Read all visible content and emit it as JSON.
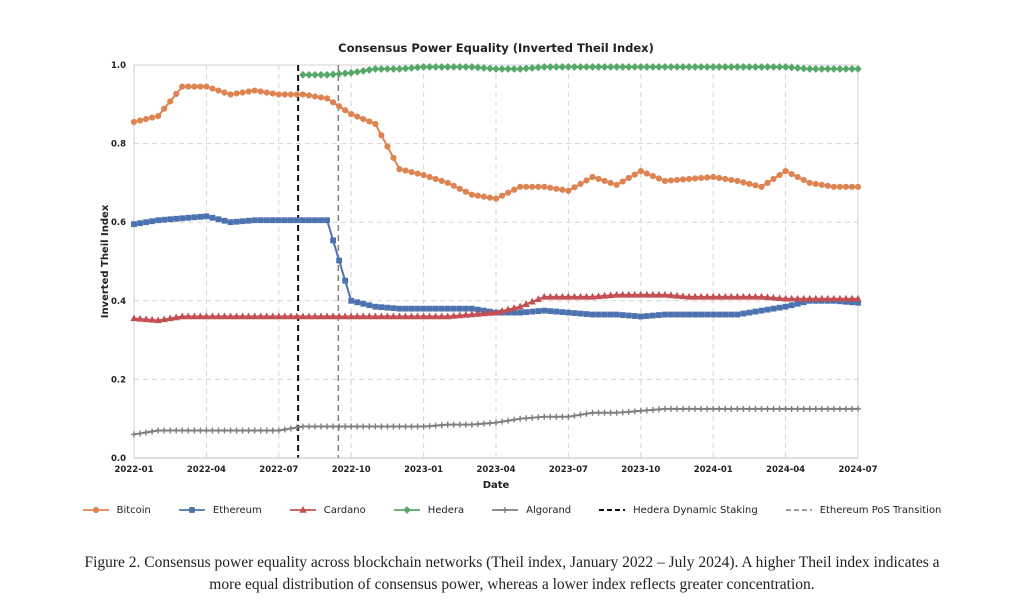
{
  "chart_data": {
    "type": "line",
    "title": "Consensus Power Equality (Inverted Theil Index)",
    "xlabel": "Date",
    "ylabel": "Inverted Theil Index",
    "xlim": [
      "2022-01",
      "2024-07"
    ],
    "ylim": [
      0.0,
      1.0
    ],
    "x_ticks": [
      "2022-01",
      "2022-04",
      "2022-07",
      "2022-10",
      "2023-01",
      "2023-04",
      "2023-07",
      "2023-10",
      "2024-01",
      "2024-04",
      "2024-07"
    ],
    "y_ticks": [
      "0.0",
      "0.2",
      "0.4",
      "0.6",
      "0.8",
      "1.0"
    ],
    "grid": true,
    "legend_placement": "bottom",
    "series": [
      {
        "name": "Bitcoin",
        "color": "#dd8452",
        "marker": "circle",
        "x": [
          "2022-01",
          "2022-02",
          "2022-03",
          "2022-04",
          "2022-05",
          "2022-06",
          "2022-07",
          "2022-08",
          "2022-09",
          "2022-10",
          "2022-11",
          "2022-12",
          "2023-01",
          "2023-02",
          "2023-03",
          "2023-04",
          "2023-05",
          "2023-06",
          "2023-07",
          "2023-08",
          "2023-09",
          "2023-10",
          "2023-11",
          "2023-12",
          "2024-01",
          "2024-02",
          "2024-03",
          "2024-04",
          "2024-05",
          "2024-06",
          "2024-07"
        ],
        "values": [
          0.855,
          0.87,
          0.945,
          0.945,
          0.925,
          0.935,
          0.925,
          0.925,
          0.915,
          0.875,
          0.85,
          0.735,
          0.72,
          0.7,
          0.67,
          0.66,
          0.69,
          0.69,
          0.68,
          0.715,
          0.695,
          0.73,
          0.705,
          0.71,
          0.715,
          0.705,
          0.69,
          0.73,
          0.7,
          0.69,
          0.69
        ]
      },
      {
        "name": "Ethereum",
        "color": "#4c72b0",
        "marker": "square",
        "x": [
          "2022-01",
          "2022-02",
          "2022-03",
          "2022-04",
          "2022-05",
          "2022-06",
          "2022-07",
          "2022-08",
          "2022-09",
          "2022-10",
          "2022-11",
          "2022-12",
          "2023-01",
          "2023-02",
          "2023-03",
          "2023-04",
          "2023-05",
          "2023-06",
          "2023-07",
          "2023-08",
          "2023-09",
          "2023-10",
          "2023-11",
          "2023-12",
          "2024-01",
          "2024-02",
          "2024-03",
          "2024-04",
          "2024-05",
          "2024-06",
          "2024-07"
        ],
        "values": [
          0.595,
          0.605,
          0.61,
          0.615,
          0.6,
          0.605,
          0.605,
          0.605,
          0.605,
          0.4,
          0.385,
          0.38,
          0.38,
          0.38,
          0.38,
          0.37,
          0.37,
          0.375,
          0.37,
          0.365,
          0.365,
          0.36,
          0.365,
          0.365,
          0.365,
          0.365,
          0.375,
          0.385,
          0.4,
          0.4,
          0.395
        ]
      },
      {
        "name": "Cardano",
        "color": "#c44e52",
        "marker": "triangle",
        "x": [
          "2022-01",
          "2022-02",
          "2022-03",
          "2022-04",
          "2022-05",
          "2022-06",
          "2022-07",
          "2022-08",
          "2022-09",
          "2022-10",
          "2022-11",
          "2022-12",
          "2023-01",
          "2023-02",
          "2023-03",
          "2023-04",
          "2023-05",
          "2023-06",
          "2023-07",
          "2023-08",
          "2023-09",
          "2023-10",
          "2023-11",
          "2023-12",
          "2024-01",
          "2024-02",
          "2024-03",
          "2024-04",
          "2024-05",
          "2024-06",
          "2024-07"
        ],
        "values": [
          0.355,
          0.35,
          0.36,
          0.36,
          0.36,
          0.36,
          0.36,
          0.36,
          0.36,
          0.36,
          0.36,
          0.36,
          0.36,
          0.36,
          0.365,
          0.37,
          0.385,
          0.41,
          0.41,
          0.41,
          0.415,
          0.415,
          0.415,
          0.41,
          0.41,
          0.41,
          0.41,
          0.405,
          0.405,
          0.405,
          0.405
        ]
      },
      {
        "name": "Hedera",
        "color": "#55a868",
        "marker": "diamond",
        "x": [
          "2022-08",
          "2022-09",
          "2022-10",
          "2022-11",
          "2022-12",
          "2023-01",
          "2023-02",
          "2023-03",
          "2023-04",
          "2023-05",
          "2023-06",
          "2023-07",
          "2023-08",
          "2023-09",
          "2023-10",
          "2023-11",
          "2023-12",
          "2024-01",
          "2024-02",
          "2024-03",
          "2024-04",
          "2024-05",
          "2024-06",
          "2024-07"
        ],
        "values": [
          0.975,
          0.975,
          0.98,
          0.99,
          0.99,
          0.995,
          0.995,
          0.995,
          0.99,
          0.99,
          0.995,
          0.995,
          0.995,
          0.995,
          0.995,
          0.995,
          0.995,
          0.995,
          0.995,
          0.995,
          0.995,
          0.99,
          0.99,
          0.99
        ]
      },
      {
        "name": "Algorand",
        "color": "#7f7f7f",
        "marker": "plus",
        "x": [
          "2022-01",
          "2022-02",
          "2022-03",
          "2022-04",
          "2022-05",
          "2022-06",
          "2022-07",
          "2022-08",
          "2022-09",
          "2022-10",
          "2022-11",
          "2022-12",
          "2023-01",
          "2023-02",
          "2023-03",
          "2023-04",
          "2023-05",
          "2023-06",
          "2023-07",
          "2023-08",
          "2023-09",
          "2023-10",
          "2023-11",
          "2023-12",
          "2024-01",
          "2024-02",
          "2024-03",
          "2024-04",
          "2024-05",
          "2024-06",
          "2024-07"
        ],
        "values": [
          0.06,
          0.07,
          0.07,
          0.07,
          0.07,
          0.07,
          0.07,
          0.08,
          0.08,
          0.08,
          0.08,
          0.08,
          0.08,
          0.085,
          0.085,
          0.09,
          0.1,
          0.105,
          0.105,
          0.115,
          0.115,
          0.12,
          0.125,
          0.125,
          0.125,
          0.125,
          0.125,
          0.125,
          0.125,
          0.125,
          0.125
        ]
      }
    ],
    "vlines": [
      {
        "name": "Ethereum PoS Transition",
        "x": "2022-09-15",
        "color": "#808080",
        "style": "dashed"
      },
      {
        "name": "Hedera Dynamic Staking",
        "x": "2022-07-25",
        "color": "#111111",
        "style": "dashed"
      }
    ]
  },
  "caption": {
    "line1": "Figure 2. Consensus power equality across blockchain networks (Theil index, January 2022 – July 2024). A higher Theil index indicates a",
    "line2": "more equal distribution of consensus power, whereas a lower index reflects greater concentration."
  }
}
